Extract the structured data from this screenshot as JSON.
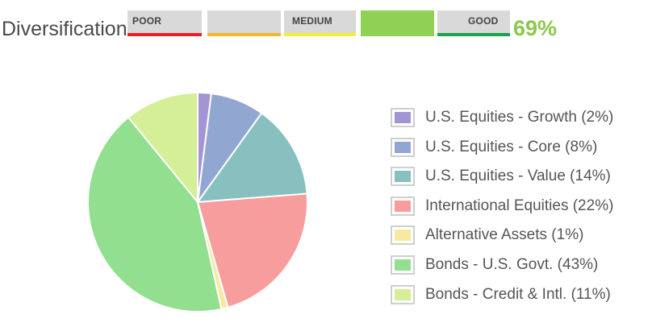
{
  "header": {
    "label": "Diversification",
    "score": "69%",
    "score_color": "#8cc84b",
    "meter": [
      {
        "label": "POOR",
        "fill": "#d9d9d9",
        "line": "#e8202a"
      },
      {
        "label": "",
        "fill": "#d9d9d9",
        "line": "#f6b62c"
      },
      {
        "label": "MEDIUM",
        "fill": "#d9d9d9",
        "line": "#f2ec3a"
      },
      {
        "label": "",
        "fill": "#8fd155",
        "line": "#8fd155"
      },
      {
        "label": "GOOD",
        "fill": "#d9d9d9",
        "line": "#1aa34a"
      }
    ],
    "active_segment": 4
  },
  "chart_data": {
    "type": "pie",
    "title": "",
    "legend_position": "right",
    "start_angle": "12 o'clock",
    "direction": "clockwise",
    "slices": [
      {
        "label": "U.S. Equities - Growth (2%)",
        "value": 2,
        "color": "#a394d3"
      },
      {
        "label": "U.S. Equities - Core (8%)",
        "value": 8,
        "color": "#92a6d2"
      },
      {
        "label": "U.S. Equities - Value (14%)",
        "value": 14,
        "color": "#87c0bf"
      },
      {
        "label": "International Equities (22%)",
        "value": 22,
        "color": "#f89d9d"
      },
      {
        "label": "Alternative Assets (1%)",
        "value": 1,
        "color": "#f8e9a0"
      },
      {
        "label": "Bonds - U.S. Govt. (43%)",
        "value": 43,
        "color": "#92df90"
      },
      {
        "label": "Bonds - Credit & Intl. (11%)",
        "value": 11,
        "color": "#d4ef98"
      }
    ]
  }
}
